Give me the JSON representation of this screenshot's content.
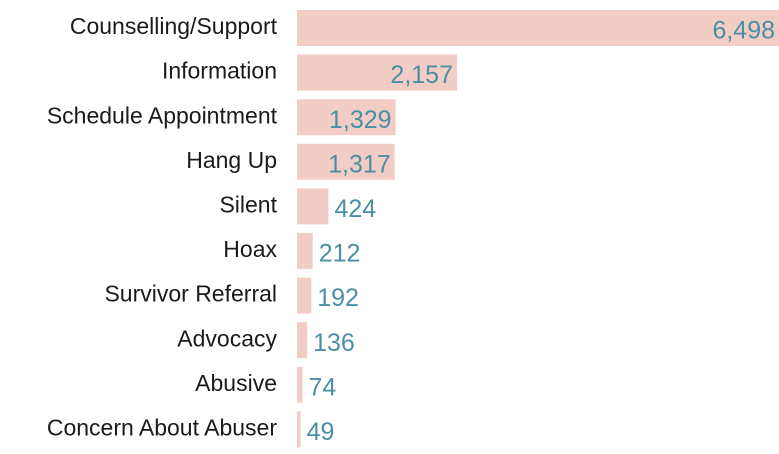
{
  "chart_data": {
    "type": "bar",
    "orientation": "horizontal",
    "color": "#f2cdc6",
    "label_color": "#4a8fa6",
    "categories": [
      "Counselling/Support",
      "Information",
      "Schedule Appointment",
      "Hang Up",
      "Silent",
      "Hoax",
      "Survivor Referral",
      "Advocacy",
      "Abusive",
      "Concern About Abuser"
    ],
    "values": [
      6498,
      2157,
      1329,
      1317,
      424,
      212,
      192,
      136,
      74,
      49
    ],
    "value_labels": [
      "6,498",
      "2,157",
      "1,329",
      "1,317",
      "424",
      "212",
      "192",
      "136",
      "74",
      "49"
    ]
  }
}
